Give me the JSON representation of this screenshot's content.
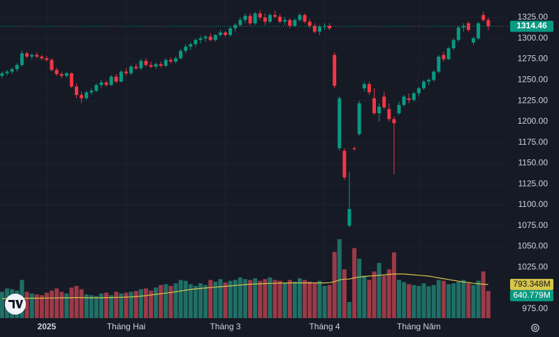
{
  "chart_data": {
    "type": "candlestick",
    "categories": [
      null,
      null,
      null,
      null,
      null,
      null,
      null,
      null,
      null,
      "2025",
      null,
      null,
      null,
      null,
      null,
      null,
      null,
      null,
      null,
      null,
      null,
      null,
      null,
      null,
      null,
      "Tháng Hai",
      null,
      null,
      null,
      null,
      null,
      null,
      null,
      null,
      null,
      null,
      null,
      null,
      null,
      null,
      null,
      null,
      null,
      null,
      null,
      "Tháng 3",
      null,
      null,
      null,
      null,
      null,
      null,
      null,
      null,
      null,
      null,
      null,
      null,
      null,
      null,
      null,
      null,
      null,
      null,
      null,
      "Tháng 4",
      null,
      null,
      null,
      null,
      null,
      null,
      null,
      null,
      null,
      null,
      null,
      null,
      null,
      null,
      null,
      null,
      null,
      null,
      "Tháng Năm",
      null,
      null,
      null,
      null,
      null,
      null,
      null,
      null,
      null,
      null,
      null,
      null,
      null,
      null
    ],
    "open": [
      1255,
      1258,
      1260,
      1263,
      1268,
      1282,
      1278,
      1280,
      1278,
      1276,
      1274,
      1262,
      1257,
      1255,
      1258,
      1242,
      1232,
      1228,
      1235,
      1237,
      1244,
      1247,
      1244,
      1254,
      1248,
      1260,
      1258,
      1266,
      1264,
      1273,
      1268,
      1266,
      1269,
      1267,
      1274,
      1272,
      1276,
      1285,
      1290,
      1293,
      1298,
      1300,
      1302,
      1298,
      1304,
      1307,
      1304,
      1312,
      1316,
      1322,
      1327,
      1318,
      1330,
      1325,
      1320,
      1328,
      1326,
      1320,
      1322,
      1315,
      1322,
      1328,
      1320,
      1315,
      1308,
      1314,
      1315,
      1280,
      1168,
      1165,
      1075,
      1168,
      1185,
      1240,
      1245,
      1228,
      1210,
      1230,
      1215,
      1203,
      1210,
      1220,
      1228,
      1226,
      1234,
      1240,
      1248,
      1250,
      1260,
      1280,
      1275,
      1288,
      1298,
      1313,
      1318,
      1295,
      1300,
      1328,
      1322
    ],
    "high": [
      1260,
      1262,
      1265,
      1270,
      1285,
      1284,
      1282,
      1283,
      1280,
      1279,
      1276,
      1265,
      1260,
      1260,
      1259,
      1246,
      1236,
      1237,
      1240,
      1246,
      1250,
      1249,
      1256,
      1257,
      1262,
      1264,
      1268,
      1270,
      1275,
      1276,
      1272,
      1271,
      1272,
      1276,
      1277,
      1278,
      1287,
      1293,
      1295,
      1300,
      1303,
      1304,
      1306,
      1305,
      1310,
      1309,
      1314,
      1318,
      1325,
      1330,
      1330,
      1332,
      1334,
      1330,
      1330,
      1333,
      1329,
      1326,
      1324,
      1324,
      1330,
      1330,
      1323,
      1318,
      1316,
      1318,
      1318,
      1283,
      1230,
      1168,
      1140,
      1170,
      1225,
      1248,
      1248,
      1240,
      1222,
      1236,
      1222,
      1206,
      1224,
      1232,
      1234,
      1236,
      1242,
      1250,
      1252,
      1262,
      1280,
      1284,
      1290,
      1300,
      1315,
      1318,
      1320,
      1302,
      1320,
      1332,
      1325
    ],
    "low": [
      1252,
      1255,
      1257,
      1260,
      1266,
      1276,
      1275,
      1276,
      1274,
      1272,
      1260,
      1255,
      1252,
      1253,
      1240,
      1228,
      1222,
      1226,
      1232,
      1235,
      1240,
      1242,
      1243,
      1246,
      1247,
      1255,
      1256,
      1262,
      1262,
      1266,
      1264,
      1263,
      1265,
      1265,
      1270,
      1270,
      1275,
      1282,
      1286,
      1290,
      1294,
      1296,
      1296,
      1296,
      1302,
      1302,
      1302,
      1308,
      1314,
      1318,
      1316,
      1316,
      1322,
      1316,
      1318,
      1324,
      1318,
      1316,
      1312,
      1314,
      1320,
      1318,
      1312,
      1306,
      1304,
      1310,
      1310,
      1240,
      1165,
      1130,
      1073,
      1165,
      1183,
      1236,
      1232,
      1208,
      1200,
      1215,
      1200,
      1137,
      1208,
      1218,
      1222,
      1224,
      1230,
      1238,
      1244,
      1248,
      1258,
      1272,
      1274,
      1286,
      1296,
      1308,
      1308,
      1292,
      1298,
      1320,
      1310
    ],
    "close": [
      1258,
      1260,
      1263,
      1268,
      1282,
      1278,
      1280,
      1278,
      1276,
      1274,
      1262,
      1257,
      1255,
      1258,
      1242,
      1232,
      1228,
      1235,
      1237,
      1244,
      1247,
      1244,
      1254,
      1248,
      1260,
      1258,
      1266,
      1264,
      1273,
      1268,
      1266,
      1269,
      1267,
      1274,
      1272,
      1276,
      1285,
      1290,
      1293,
      1298,
      1300,
      1302,
      1298,
      1304,
      1307,
      1304,
      1312,
      1316,
      1322,
      1327,
      1318,
      1330,
      1325,
      1320,
      1328,
      1326,
      1320,
      1322,
      1315,
      1322,
      1328,
      1320,
      1315,
      1308,
      1314,
      1315,
      1312,
      1243,
      1228,
      1133,
      1095,
      1167,
      1222,
      1245,
      1235,
      1210,
      1218,
      1217,
      1203,
      1198,
      1220,
      1230,
      1226,
      1234,
      1240,
      1248,
      1250,
      1260,
      1278,
      1275,
      1288,
      1298,
      1313,
      1315,
      1310,
      1300,
      1318,
      1322,
      1314.46
    ],
    "up_color": "#089981",
    "down_color": "#f23645",
    "ylim": [
      964,
      1346
    ],
    "yticks": [
      {
        "value": 975,
        "label": "975.00"
      },
      {
        "value": 1000,
        "label": "1000.00"
      },
      {
        "value": 1025,
        "label": "1025.00"
      },
      {
        "value": 1050,
        "label": "1050.00"
      },
      {
        "value": 1075,
        "label": "1075.00"
      },
      {
        "value": 1100,
        "label": "1100.00"
      },
      {
        "value": 1125,
        "label": "1125.00"
      },
      {
        "value": 1150,
        "label": "1150.00"
      },
      {
        "value": 1175,
        "label": "1175.00"
      },
      {
        "value": 1200,
        "label": "1200.00"
      },
      {
        "value": 1225,
        "label": "1225.00"
      },
      {
        "value": 1250,
        "label": "1250.00"
      },
      {
        "value": 1275,
        "label": "1275.00"
      },
      {
        "value": 1300,
        "label": "1300.00"
      },
      {
        "value": 1325,
        "label": "1325.00"
      }
    ],
    "grid": true,
    "volume": {
      "up_color": "#1f6f66",
      "down_color": "#9c3a47",
      "ylim": [
        0,
        7500
      ],
      "values": [
        620,
        700,
        680,
        650,
        900,
        620,
        580,
        560,
        540,
        600,
        650,
        700,
        620,
        580,
        720,
        760,
        680,
        560,
        540,
        520,
        580,
        600,
        540,
        620,
        580,
        600,
        620,
        640,
        680,
        700,
        650,
        720,
        780,
        800,
        760,
        820,
        900,
        880,
        800,
        760,
        820,
        780,
        900,
        860,
        920,
        840,
        880,
        900,
        960,
        920,
        900,
        940,
        880,
        920,
        960,
        900,
        880,
        840,
        900,
        860,
        940,
        900,
        860,
        820,
        880,
        760,
        780,
        1560,
        1860,
        1150,
        380,
        1650,
        1400,
        1000,
        900,
        1100,
        1300,
        1000,
        1150,
        1550,
        900,
        850,
        800,
        780,
        760,
        820,
        750,
        780,
        900,
        880,
        800,
        820,
        860,
        900,
        820,
        780,
        880,
        1100,
        640.779
      ],
      "value_labels": [
        null,
        null,
        null,
        null,
        null,
        null,
        null,
        null,
        null,
        null,
        null,
        null,
        null,
        null,
        null,
        null,
        null,
        null,
        null,
        null,
        null,
        null,
        null,
        null,
        null,
        null,
        null,
        null,
        null,
        null,
        null,
        null,
        null,
        null,
        null,
        null,
        null,
        null,
        null,
        null,
        null,
        null,
        null,
        null,
        null,
        null,
        null,
        null,
        null,
        null,
        null,
        null,
        null,
        null,
        null,
        null,
        null,
        null,
        null,
        null,
        null,
        null,
        null,
        null,
        null,
        null,
        null,
        null,
        null,
        null,
        null,
        null,
        null,
        null,
        null,
        null,
        null,
        null,
        null,
        null,
        null,
        null,
        null,
        null,
        null,
        null,
        null,
        null,
        null,
        null,
        null,
        null,
        null,
        null,
        null,
        null,
        null,
        null,
        "640.779M"
      ]
    },
    "volume_ma": {
      "color": "#d8c64a",
      "values": [
        460,
        460,
        465,
        465,
        470,
        470,
        470,
        470,
        470,
        475,
        475,
        475,
        480,
        480,
        480,
        485,
        485,
        480,
        480,
        480,
        480,
        485,
        485,
        490,
        490,
        495,
        500,
        510,
        520,
        530,
        545,
        560,
        575,
        590,
        605,
        620,
        640,
        660,
        675,
        690,
        700,
        710,
        720,
        730,
        740,
        750,
        760,
        770,
        780,
        790,
        800,
        805,
        810,
        815,
        820,
        820,
        825,
        825,
        830,
        830,
        830,
        830,
        830,
        830,
        830,
        830,
        835,
        860,
        900,
        920,
        920,
        950,
        970,
        980,
        990,
        1000,
        1010,
        1020,
        1030,
        1040,
        1040,
        1040,
        1030,
        1020,
        1010,
        1000,
        990,
        970,
        950,
        930,
        910,
        890,
        870,
        850,
        840,
        820,
        810,
        800,
        793.348
      ],
      "value_labels": [
        null,
        null,
        null,
        null,
        null,
        null,
        null,
        null,
        null,
        null,
        null,
        null,
        null,
        null,
        null,
        null,
        null,
        null,
        null,
        null,
        null,
        null,
        null,
        null,
        null,
        null,
        null,
        null,
        null,
        null,
        null,
        null,
        null,
        null,
        null,
        null,
        null,
        null,
        null,
        null,
        null,
        null,
        null,
        null,
        null,
        null,
        null,
        null,
        null,
        null,
        null,
        null,
        null,
        null,
        null,
        null,
        null,
        null,
        null,
        null,
        null,
        null,
        null,
        null,
        null,
        null,
        null,
        null,
        null,
        null,
        null,
        null,
        null,
        null,
        null,
        null,
        null,
        null,
        null,
        null,
        null,
        null,
        null,
        null,
        null,
        null,
        null,
        null,
        null,
        null,
        null,
        null,
        null,
        null,
        null,
        null,
        null,
        null,
        "793.348M"
      ]
    }
  }
}
